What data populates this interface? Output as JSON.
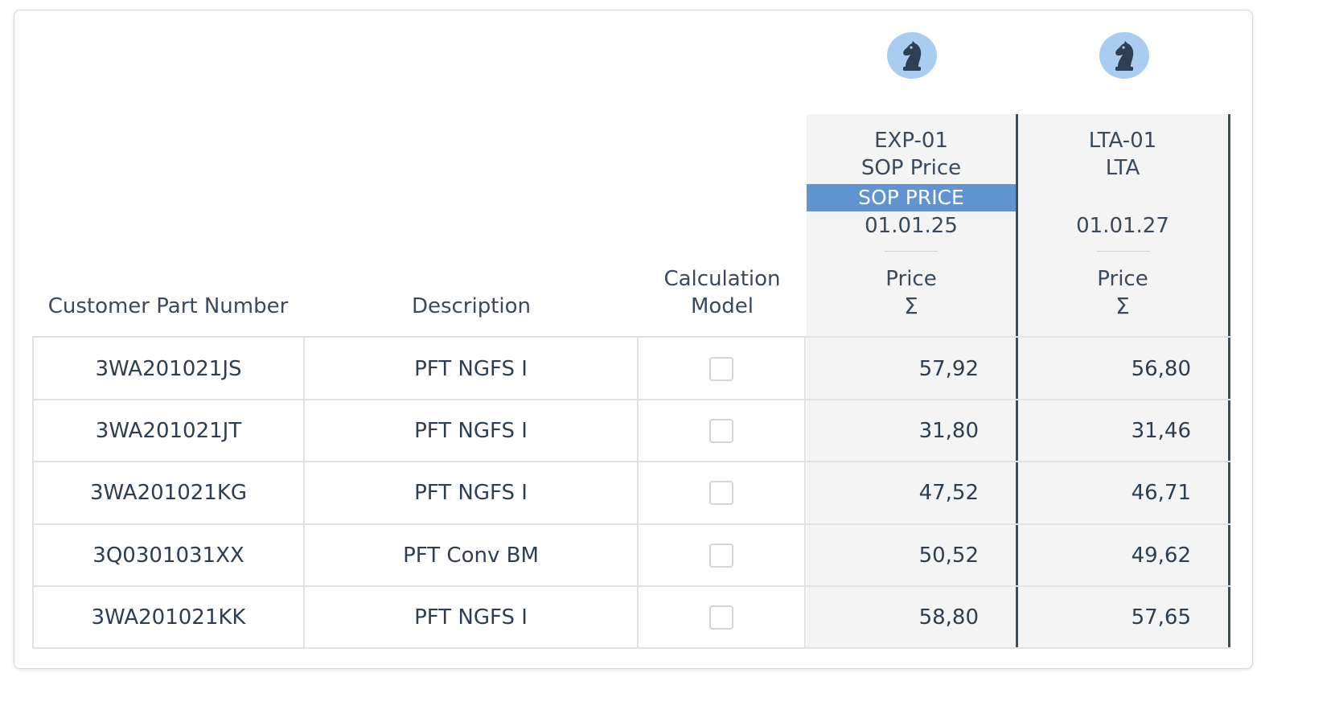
{
  "table": {
    "headers": {
      "customer_part_number": "Customer Part Number",
      "description": "Description",
      "calculation_model_line1": "Calculation",
      "calculation_model_line2": "Model"
    },
    "price_columns": [
      {
        "code": "EXP-01",
        "name": "SOP Price",
        "badge": "SOP PRICE",
        "date": "01.01.25",
        "metric": "Price",
        "aggregate": "Σ",
        "icon": "chess-knight-icon"
      },
      {
        "code": "LTA-01",
        "name": "LTA",
        "badge": "",
        "date": "01.01.27",
        "metric": "Price",
        "aggregate": "Σ",
        "icon": "chess-knight-icon"
      }
    ],
    "rows": [
      {
        "part": "3WA201021JS",
        "description": "PFT NGFS I",
        "calc_model_checked": false,
        "exp_price": "57,92",
        "lta_price": "56,80"
      },
      {
        "part": "3WA201021JT",
        "description": "PFT NGFS I",
        "calc_model_checked": false,
        "exp_price": "31,80",
        "lta_price": "31,46"
      },
      {
        "part": "3WA201021KG",
        "description": "PFT NGFS I",
        "calc_model_checked": false,
        "exp_price": "47,52",
        "lta_price": "46,71"
      },
      {
        "part": "3Q0301031XX",
        "description": "PFT Conv BM",
        "calc_model_checked": false,
        "exp_price": "50,52",
        "lta_price": "49,62"
      },
      {
        "part": "3WA201021KK",
        "description": "PFT NGFS I",
        "calc_model_checked": false,
        "exp_price": "58,80",
        "lta_price": "57,65"
      }
    ]
  },
  "colors": {
    "badge": "#5f94d1",
    "avatar": "#a9cdf0",
    "column_separator": "#3d4d5f",
    "price_column_bg": "#f4f4f4",
    "text": "#2c3e50"
  }
}
